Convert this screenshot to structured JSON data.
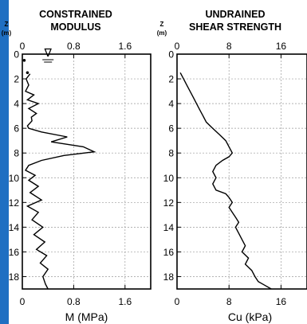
{
  "colors": {
    "frame": "#1f6fc2",
    "line": "#000000",
    "grid": "#9a9a9a"
  },
  "chart_data": [
    {
      "type": "line",
      "title": [
        "CONSTRAINED",
        "MODULUS"
      ],
      "ylabel_top": "Z",
      "ylabel_unit": "(m)",
      "xlabel": "M (MPa)",
      "xlim": [
        0,
        2.0
      ],
      "xticks": [
        0,
        0.8,
        1.6
      ],
      "xtick_labels_top": [
        "0",
        "0.8",
        "1.6"
      ],
      "xtick_labels_bottom": [
        "0",
        "0.8",
        "1.6"
      ],
      "ylim": [
        0,
        19
      ],
      "yticks": [
        0,
        2,
        4,
        6,
        8,
        10,
        12,
        14,
        16,
        18
      ],
      "ytick_labels": [
        "0",
        "2",
        "4",
        "6",
        "8",
        "10",
        "12",
        "14",
        "16",
        "18"
      ],
      "grid": true,
      "water_table_symbol": "∇",
      "water_table": {
        "x": 0.4,
        "depth": 0
      },
      "dots": [
        {
          "x": 0.08,
          "depth": 1.5
        },
        {
          "x": 0.03,
          "depth": 0.5
        }
      ],
      "series": [
        {
          "x": [
            0.12,
            0.06,
            0.1,
            0.05,
            0.18,
            0.08,
            0.25,
            0.1,
            0.22,
            0.14,
            0.15,
            0.08,
            0.1,
            0.3,
            0.7,
            0.45,
            0.95,
            1.12,
            0.65,
            0.3,
            0.1,
            0.05,
            0.2,
            0.1,
            0.25,
            0.12,
            0.3,
            0.08,
            0.25,
            0.15,
            0.32,
            0.18,
            0.35,
            0.22,
            0.38,
            0.28,
            0.4,
            0.32,
            0.36,
            0.4
          ],
          "depth": [
            1.6,
            2.0,
            2.5,
            3.0,
            3.3,
            3.7,
            4.0,
            4.4,
            4.8,
            5.1,
            5.4,
            5.8,
            6.0,
            6.3,
            6.7,
            7.1,
            7.5,
            7.9,
            8.2,
            8.6,
            9.0,
            9.4,
            9.8,
            10.2,
            10.7,
            11.2,
            11.8,
            12.3,
            12.8,
            13.4,
            14.0,
            14.6,
            15.2,
            15.8,
            16.3,
            16.9,
            17.4,
            18.0,
            18.6,
            19.0
          ]
        }
      ]
    },
    {
      "type": "line",
      "title": [
        "UNDRAINED",
        "SHEAR STRENGTH"
      ],
      "ylabel_top": "Z",
      "ylabel_unit": "(m)",
      "xlabel": "Cu (kPa)",
      "xlim": [
        0,
        20
      ],
      "xticks": [
        0,
        8,
        16
      ],
      "xtick_labels_top": [
        "0",
        "8",
        "16"
      ],
      "xtick_labels_bottom": [
        "0",
        "8",
        "16"
      ],
      "ylim": [
        0,
        19
      ],
      "yticks": [
        0,
        2,
        4,
        6,
        8,
        10,
        12,
        14,
        16,
        18
      ],
      "ytick_labels": [
        "0",
        "2",
        "4",
        "6",
        "8",
        "10",
        "12",
        "14",
        "16",
        "18"
      ],
      "grid": true,
      "series": [
        {
          "x": [
            0.5,
            1.0,
            1.5,
            2.0,
            2.5,
            3.0,
            3.5,
            4.0,
            4.5,
            5.5,
            6.5,
            7.5,
            8.0,
            8.5,
            8.0,
            7.0,
            6.0,
            5.5,
            6.0,
            5.5,
            6.0,
            7.5,
            8.0,
            8.5,
            8.0,
            8.5,
            9.0,
            9.5,
            9.0,
            9.5,
            10.0,
            10.5,
            10.0,
            11.0,
            10.5,
            11.5,
            12.0,
            12.5,
            13.5,
            14.5
          ],
          "depth": [
            1.5,
            2.0,
            2.5,
            3.0,
            3.5,
            4.0,
            4.5,
            5.0,
            5.5,
            6.0,
            6.5,
            7.0,
            7.5,
            8.0,
            8.3,
            8.6,
            9.0,
            9.5,
            10.0,
            10.5,
            11.0,
            11.3,
            11.6,
            12.0,
            12.4,
            12.8,
            13.2,
            13.6,
            14.0,
            14.5,
            15.0,
            15.5,
            16.0,
            16.5,
            17.0,
            17.5,
            18.0,
            18.4,
            18.7,
            19.0
          ]
        }
      ]
    }
  ]
}
